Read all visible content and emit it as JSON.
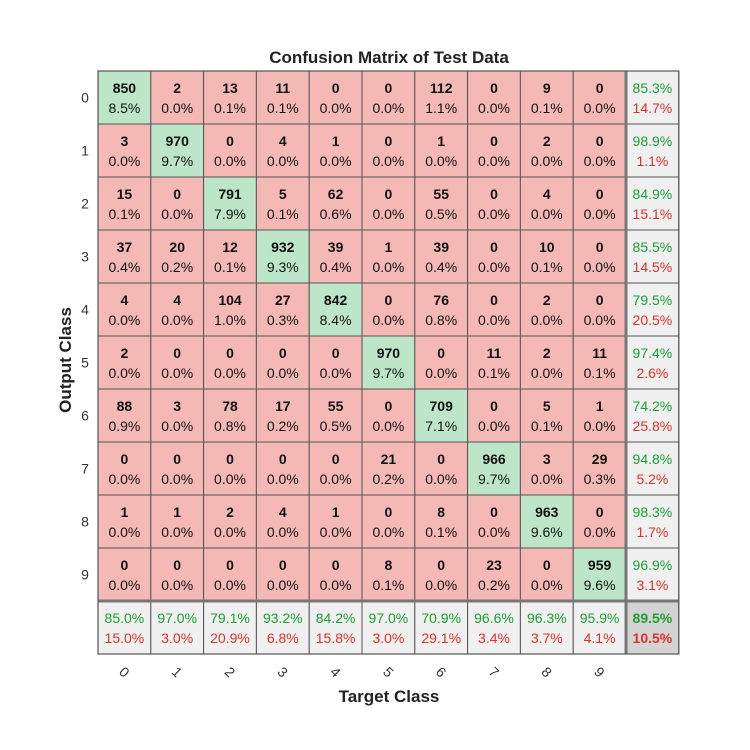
{
  "chart_data": {
    "type": "heatmap",
    "title": "Confusion Matrix of Test Data",
    "xlabel": "Target Class",
    "ylabel": "Output Class",
    "classes": [
      "0",
      "1",
      "2",
      "3",
      "4",
      "5",
      "6",
      "7",
      "8",
      "9"
    ],
    "matrix": [
      [
        850,
        2,
        13,
        11,
        0,
        0,
        112,
        0,
        9,
        0
      ],
      [
        3,
        970,
        0,
        4,
        1,
        0,
        1,
        0,
        2,
        0
      ],
      [
        15,
        0,
        791,
        5,
        62,
        0,
        55,
        0,
        4,
        0
      ],
      [
        37,
        20,
        12,
        932,
        39,
        1,
        39,
        0,
        10,
        0
      ],
      [
        4,
        4,
        104,
        27,
        842,
        0,
        76,
        0,
        2,
        0
      ],
      [
        2,
        0,
        0,
        0,
        0,
        970,
        0,
        11,
        2,
        11
      ],
      [
        88,
        3,
        78,
        17,
        55,
        0,
        709,
        0,
        5,
        1
      ],
      [
        0,
        0,
        0,
        0,
        0,
        21,
        0,
        966,
        3,
        29
      ],
      [
        1,
        1,
        2,
        4,
        1,
        0,
        8,
        0,
        963,
        0
      ],
      [
        0,
        0,
        0,
        0,
        0,
        8,
        0,
        23,
        0,
        959
      ]
    ],
    "cell_percent": [
      [
        "8.5%",
        "0.0%",
        "0.1%",
        "0.1%",
        "0.0%",
        "0.0%",
        "1.1%",
        "0.0%",
        "0.1%",
        "0.0%"
      ],
      [
        "0.0%",
        "9.7%",
        "0.0%",
        "0.0%",
        "0.0%",
        "0.0%",
        "0.0%",
        "0.0%",
        "0.0%",
        "0.0%"
      ],
      [
        "0.1%",
        "0.0%",
        "7.9%",
        "0.1%",
        "0.6%",
        "0.0%",
        "0.5%",
        "0.0%",
        "0.0%",
        "0.0%"
      ],
      [
        "0.4%",
        "0.2%",
        "0.1%",
        "9.3%",
        "0.4%",
        "0.0%",
        "0.4%",
        "0.0%",
        "0.1%",
        "0.0%"
      ],
      [
        "0.0%",
        "0.0%",
        "1.0%",
        "0.3%",
        "8.4%",
        "0.0%",
        "0.8%",
        "0.0%",
        "0.0%",
        "0.0%"
      ],
      [
        "0.0%",
        "0.0%",
        "0.0%",
        "0.0%",
        "0.0%",
        "9.7%",
        "0.0%",
        "0.1%",
        "0.0%",
        "0.1%"
      ],
      [
        "0.9%",
        "0.0%",
        "0.8%",
        "0.2%",
        "0.5%",
        "0.0%",
        "7.1%",
        "0.0%",
        "0.1%",
        "0.0%"
      ],
      [
        "0.0%",
        "0.0%",
        "0.0%",
        "0.0%",
        "0.0%",
        "0.2%",
        "0.0%",
        "9.7%",
        "0.0%",
        "0.3%"
      ],
      [
        "0.0%",
        "0.0%",
        "0.0%",
        "0.0%",
        "0.0%",
        "0.0%",
        "0.1%",
        "0.0%",
        "9.6%",
        "0.0%"
      ],
      [
        "0.0%",
        "0.0%",
        "0.0%",
        "0.0%",
        "0.0%",
        "0.1%",
        "0.0%",
        "0.2%",
        "0.0%",
        "9.6%"
      ]
    ],
    "row_summary": [
      {
        "correct": "85.3%",
        "wrong": "14.7%"
      },
      {
        "correct": "98.9%",
        "wrong": "1.1%"
      },
      {
        "correct": "84.9%",
        "wrong": "15.1%"
      },
      {
        "correct": "85.5%",
        "wrong": "14.5%"
      },
      {
        "correct": "79.5%",
        "wrong": "20.5%"
      },
      {
        "correct": "97.4%",
        "wrong": "2.6%"
      },
      {
        "correct": "74.2%",
        "wrong": "25.8%"
      },
      {
        "correct": "94.8%",
        "wrong": "5.2%"
      },
      {
        "correct": "98.3%",
        "wrong": "1.7%"
      },
      {
        "correct": "96.9%",
        "wrong": "3.1%"
      }
    ],
    "col_summary": [
      {
        "correct": "85.0%",
        "wrong": "15.0%"
      },
      {
        "correct": "97.0%",
        "wrong": "3.0%"
      },
      {
        "correct": "79.1%",
        "wrong": "20.9%"
      },
      {
        "correct": "93.2%",
        "wrong": "6.8%"
      },
      {
        "correct": "84.2%",
        "wrong": "15.8%"
      },
      {
        "correct": "97.0%",
        "wrong": "3.0%"
      },
      {
        "correct": "70.9%",
        "wrong": "29.1%"
      },
      {
        "correct": "96.6%",
        "wrong": "3.4%"
      },
      {
        "correct": "96.3%",
        "wrong": "3.7%"
      },
      {
        "correct": "95.9%",
        "wrong": "4.1%"
      }
    ],
    "overall": {
      "correct": "89.5%",
      "wrong": "10.5%"
    },
    "colors": {
      "correct_cell": "#bde5c8",
      "wrong_cell": "#f4b9b4",
      "summary_cell": "#f0f0f0",
      "overall_cell": "#d3d3d3",
      "correct_text": "#1aa034",
      "wrong_text": "#e0302a",
      "grid_line": "#555555"
    }
  }
}
